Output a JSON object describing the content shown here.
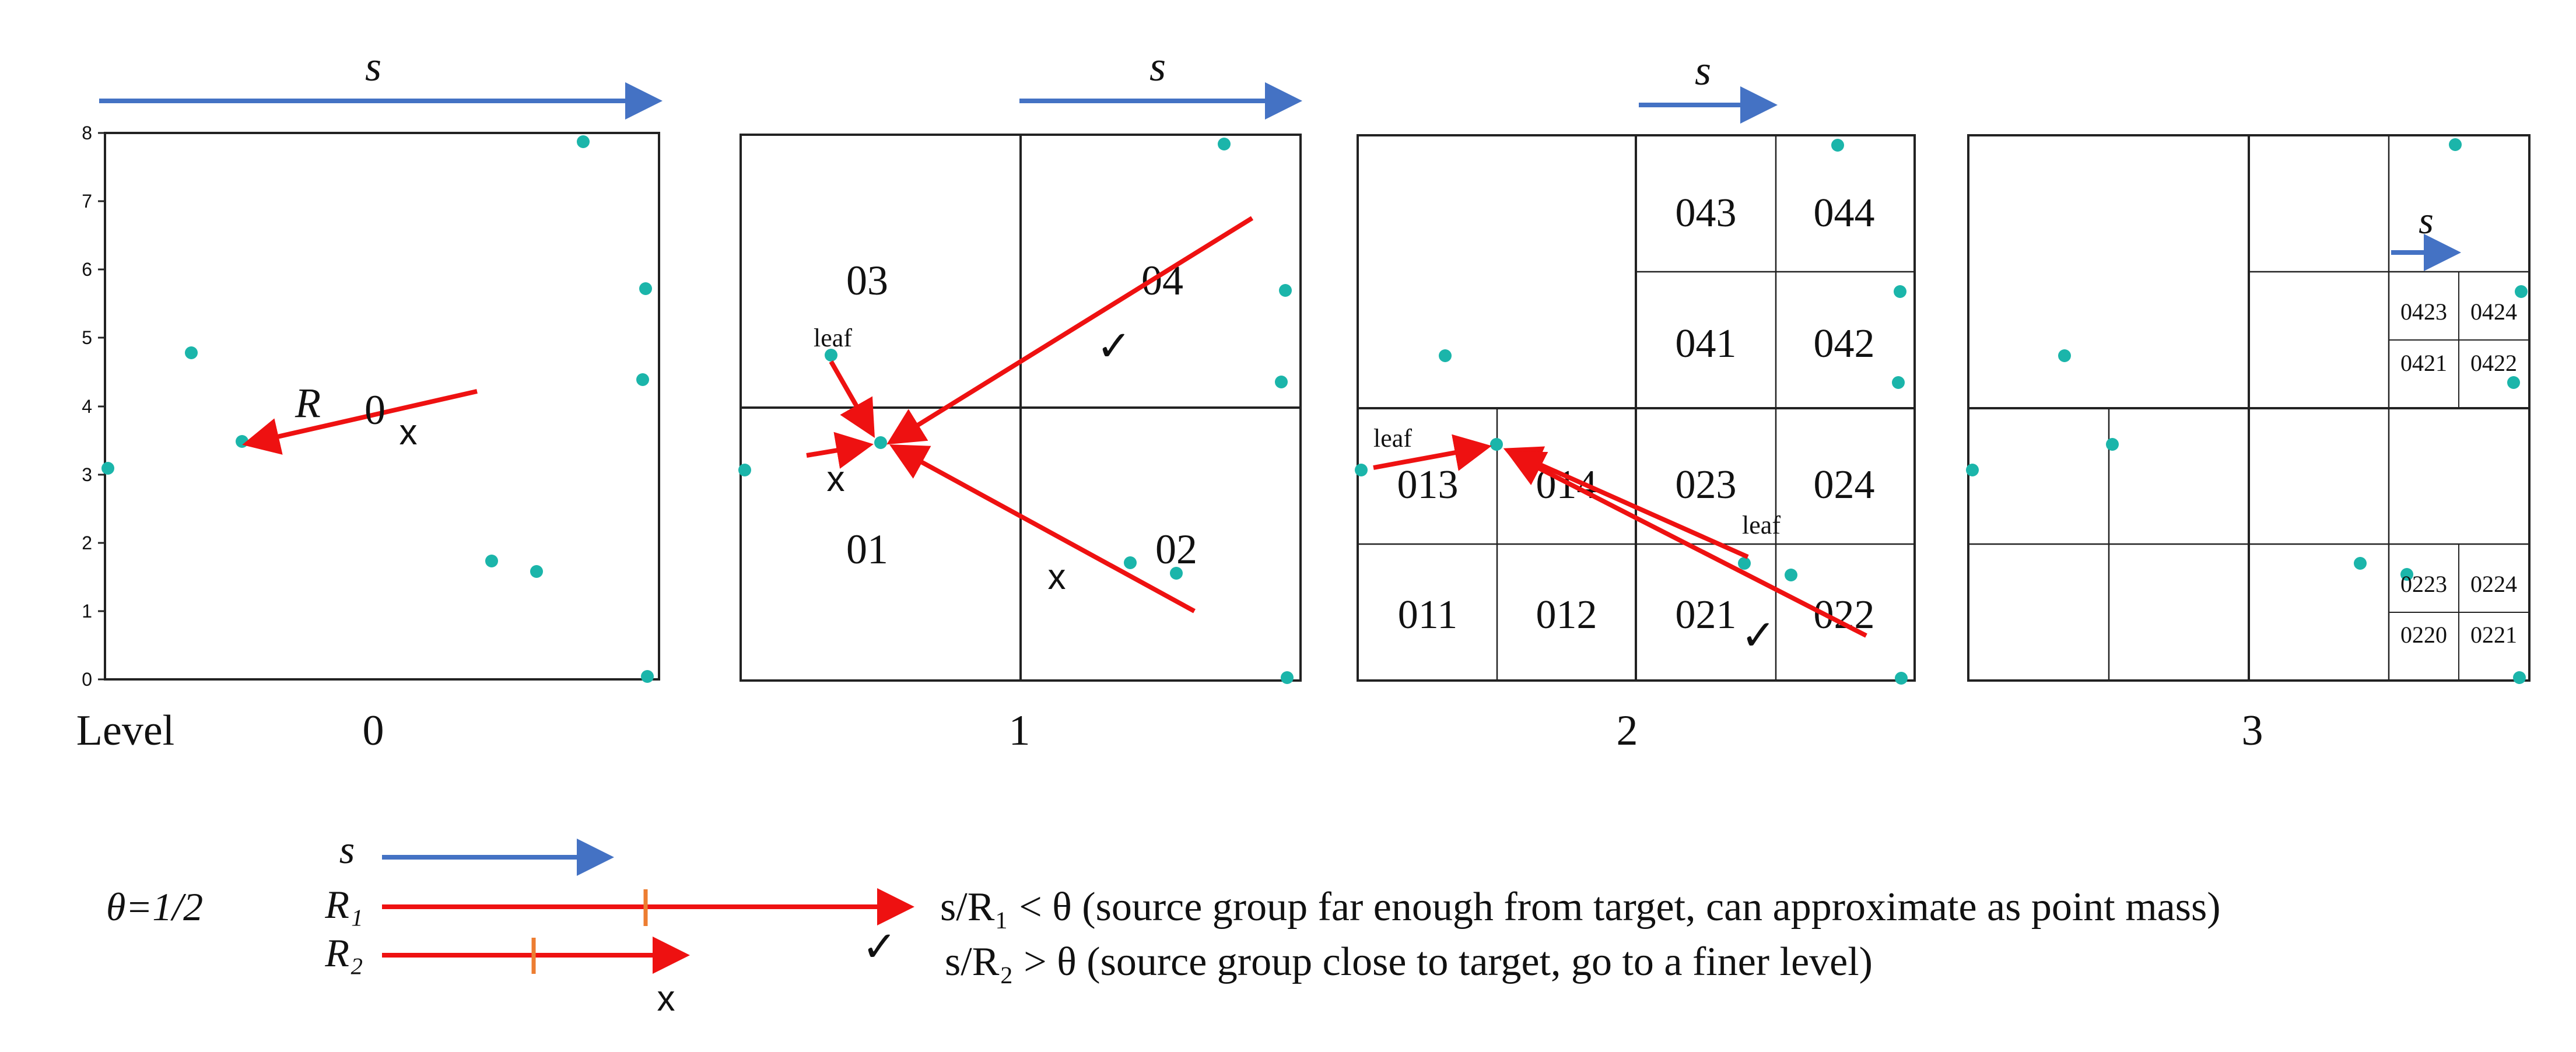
{
  "colors": {
    "blue": "#4472C4",
    "red": "#EE1111",
    "orange": "#ED7D31",
    "point": "#1BB5AA",
    "grid": "#222222"
  },
  "icons": {
    "accept": "checkmark-icon",
    "reject": "cross-icon"
  },
  "level_prefix": "Level",
  "y_ticks": [
    "0",
    "1",
    "2",
    "3",
    "4",
    "5",
    "6",
    "7",
    "8"
  ],
  "panels": [
    {
      "level": "0",
      "s_label": "s",
      "arrow_label": "R",
      "cell_labels": [
        "0"
      ],
      "mark": "x"
    },
    {
      "level": "1",
      "s_label": "s",
      "leaf_label": "leaf",
      "cell_labels": [
        "03",
        "04",
        "01",
        "02"
      ],
      "marks": [
        "✓",
        "x",
        "x"
      ]
    },
    {
      "level": "2",
      "s_label": "s",
      "leaf_labels": [
        "leaf",
        "leaf"
      ],
      "cell_labels": [
        "043",
        "044",
        "041",
        "042",
        "013",
        "014",
        "023",
        "024",
        "011",
        "012",
        "021",
        "022"
      ],
      "marks": [
        "✓"
      ]
    },
    {
      "level": "3",
      "s_label": "s",
      "cell_labels": [
        "0423",
        "0424",
        "0421",
        "0422",
        "0223",
        "0224",
        "0220",
        "0221"
      ]
    }
  ],
  "legend": {
    "theta": "θ=1/2",
    "s": "s",
    "r1": "R₁",
    "r2": "R₂",
    "rule1": "s/R₁ < θ  (source group far enough from target, can approximate as point mass)",
    "rule2": "s/R₂ > θ (source group close to target, go to a finer level)",
    "mark1": "✓",
    "mark2": "x"
  }
}
